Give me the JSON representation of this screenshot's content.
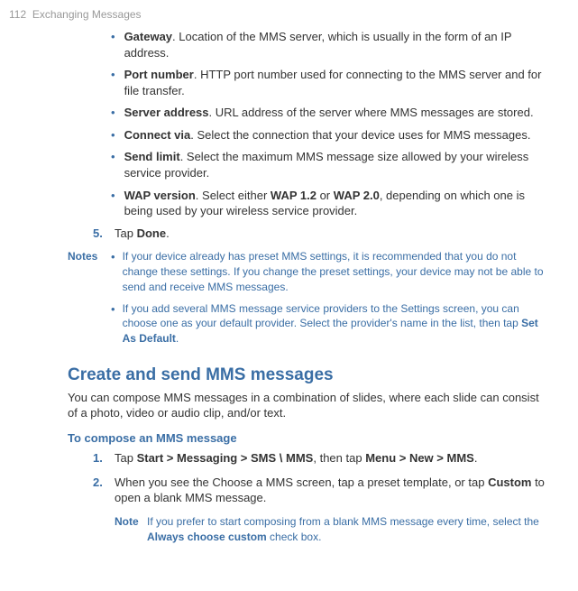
{
  "header": {
    "page_number": "112",
    "chapter_title": "Exchanging Messages"
  },
  "settings": [
    {
      "bold_label": "Gateway",
      "text": ". Location of the MMS server, which is usually in the form of an IP address."
    },
    {
      "bold_label": "Port number",
      "text": ". HTTP port number used for connecting to the MMS server and for file transfer."
    },
    {
      "bold_label": "Server address",
      "text": ". URL address of the server where MMS messages are stored."
    },
    {
      "bold_label": "Connect via",
      "text": ". Select the connection that your device uses for MMS messages."
    },
    {
      "bold_label": "Send limit",
      "text": ". Select the maximum MMS message size allowed by your wireless service provider."
    },
    {
      "bold_label": "WAP version",
      "segments": [
        {
          "text": ". Select either ",
          "bold": false
        },
        {
          "text": "WAP 1.2",
          "bold": true
        },
        {
          "text": " or ",
          "bold": false
        },
        {
          "text": "WAP 2.0",
          "bold": true
        },
        {
          "text": ", depending on which one is being used by your wireless service provider.",
          "bold": false
        }
      ]
    }
  ],
  "step5": {
    "num": "5.",
    "segments": [
      {
        "text": "Tap ",
        "bold": false
      },
      {
        "text": "Done",
        "bold": true
      },
      {
        "text": ".",
        "bold": false
      }
    ]
  },
  "notes": {
    "label": "Notes",
    "items": [
      {
        "text": "If your device already has preset MMS settings, it is recommended that you do not change these settings. If you change the preset settings, your device may not be able to send and receive MMS messages."
      },
      {
        "segments": [
          {
            "text": "If you add several MMS message service providers to the Settings screen, you can choose one as your default provider. Select the provider's name in the list, then tap ",
            "bold": false
          },
          {
            "text": "Set As Default",
            "bold": true
          },
          {
            "text": ".",
            "bold": false
          }
        ]
      }
    ]
  },
  "section": {
    "title": "Create and send MMS messages",
    "desc": "You can compose MMS messages in a combination of slides, where each slide can consist of a photo, video or audio clip, and/or text."
  },
  "subheading": "To compose an MMS message",
  "compose_steps": [
    {
      "num": "1.",
      "segments": [
        {
          "text": "Tap ",
          "bold": false
        },
        {
          "text": "Start > Messaging > SMS \\ MMS",
          "bold": true
        },
        {
          "text": ", then tap ",
          "bold": false
        },
        {
          "text": "Menu > New > MMS",
          "bold": true
        },
        {
          "text": ".",
          "bold": false
        }
      ]
    },
    {
      "num": "2.",
      "segments": [
        {
          "text": "When you see the Choose a MMS screen, tap a preset template, or tap ",
          "bold": false
        },
        {
          "text": "Custom",
          "bold": true
        },
        {
          "text": " to open a blank MMS message.",
          "bold": false
        }
      ]
    }
  ],
  "inline_note": {
    "label": "Note",
    "segments": [
      {
        "text": "If you prefer to start composing from a blank MMS message every time, select the ",
        "bold": false
      },
      {
        "text": "Always choose custom ",
        "bold": true
      },
      {
        "text": "check box.",
        "bold": false
      }
    ]
  }
}
